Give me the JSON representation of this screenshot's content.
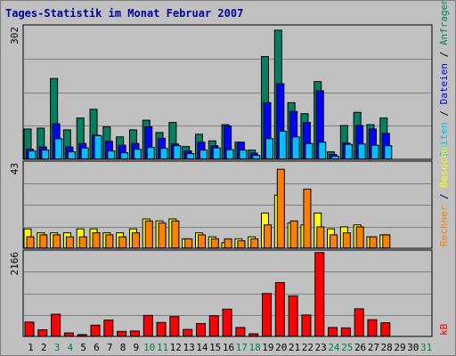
{
  "title": "Tages-Statistik im Monat Februar 2007",
  "colors": {
    "background": "#c0c0c0",
    "hits": "#008060",
    "files": "#0000ff",
    "pages": "#00c0ff",
    "visits": "#ffff00",
    "sites": "#ff8000",
    "kbytes": "#ff0000",
    "weekend_day": "#008040",
    "weekday": "#000000"
  },
  "legend": {
    "hits": "Anfragen",
    "files": "Dateien",
    "pages": "Seiten",
    "visits": "Besuche",
    "sites": "Rechner",
    "kbytes": "kB",
    "separator": "/"
  },
  "chart_data": {
    "type": "bar",
    "categories": [
      "1",
      "2",
      "3",
      "4",
      "5",
      "6",
      "7",
      "8",
      "9",
      "10",
      "11",
      "12",
      "13",
      "14",
      "15",
      "16",
      "17",
      "18",
      "19",
      "20",
      "21",
      "22",
      "23",
      "24",
      "25",
      "26",
      "27",
      "28",
      "29",
      "30",
      "31"
    ],
    "weekend_days": [
      "3",
      "4",
      "10",
      "11",
      "17",
      "18",
      "24",
      "25",
      "31"
    ],
    "panels": [
      {
        "id": "top",
        "ymax_label": "302",
        "ymax": 302,
        "series": [
          {
            "name": "Anfragen",
            "key": "hits",
            "values": [
              70,
              72,
              185,
              68,
              95,
              115,
              75,
              52,
              68,
              90,
              62,
              85,
              30,
              58,
              43,
              80,
              40,
              22,
              235,
              295,
              130,
              105,
              178,
              18,
              78,
              108,
              80,
              95,
              0,
              0,
              0
            ]
          },
          {
            "name": "Dateien",
            "key": "files",
            "values": [
              24,
              29,
              82,
              29,
              37,
              56,
              42,
              33,
              37,
              75,
              49,
              36,
              20,
              40,
              32,
              77,
              40,
              15,
              130,
              173,
              110,
              85,
              157,
              12,
              38,
              78,
              70,
              60,
              0,
              0,
              0
            ]
          },
          {
            "name": "Seiten",
            "key": "pages",
            "values": [
              20,
              22,
              48,
              18,
              27,
              55,
              20,
              16,
              24,
              28,
              26,
              32,
              14,
              22,
              27,
              23,
              22,
              10,
              48,
              65,
              52,
              37,
              40,
              8,
              35,
              36,
              33,
              32,
              0,
              0,
              0
            ]
          }
        ]
      },
      {
        "id": "middle",
        "ymax_label": "43",
        "ymax": 43,
        "series": [
          {
            "name": "Besuche",
            "key": "visits",
            "values": [
              10,
              8,
              8,
              8,
              10,
              10,
              8,
              8,
              10,
              15,
              14,
              15,
              5,
              8,
              6,
              3,
              5,
              6,
              18,
              27,
              13,
              12,
              18,
              10,
              11,
              12,
              6,
              7,
              0,
              0,
              0
            ]
          },
          {
            "name": "Rechner",
            "key": "sites",
            "values": [
              6,
              7,
              7,
              6,
              6,
              8,
              7,
              6,
              8,
              14,
              13,
              14,
              5,
              7,
              5,
              5,
              4,
              5,
              12,
              40,
              14,
              30,
              11,
              7,
              8,
              11,
              6,
              7,
              0,
              0,
              0
            ]
          }
        ]
      },
      {
        "id": "bottom",
        "ymax_label": "2166",
        "ymax": 2166,
        "series": [
          {
            "name": "kB",
            "key": "kbytes",
            "values": [
              380,
              180,
              580,
              100,
              60,
              300,
              430,
              140,
              150,
              550,
              370,
              520,
              190,
              340,
              540,
              710,
              240,
              80,
              1110,
              1390,
              1050,
              560,
              2160,
              240,
              230,
              720,
              440,
              360,
              0,
              0,
              0
            ]
          }
        ]
      }
    ]
  }
}
